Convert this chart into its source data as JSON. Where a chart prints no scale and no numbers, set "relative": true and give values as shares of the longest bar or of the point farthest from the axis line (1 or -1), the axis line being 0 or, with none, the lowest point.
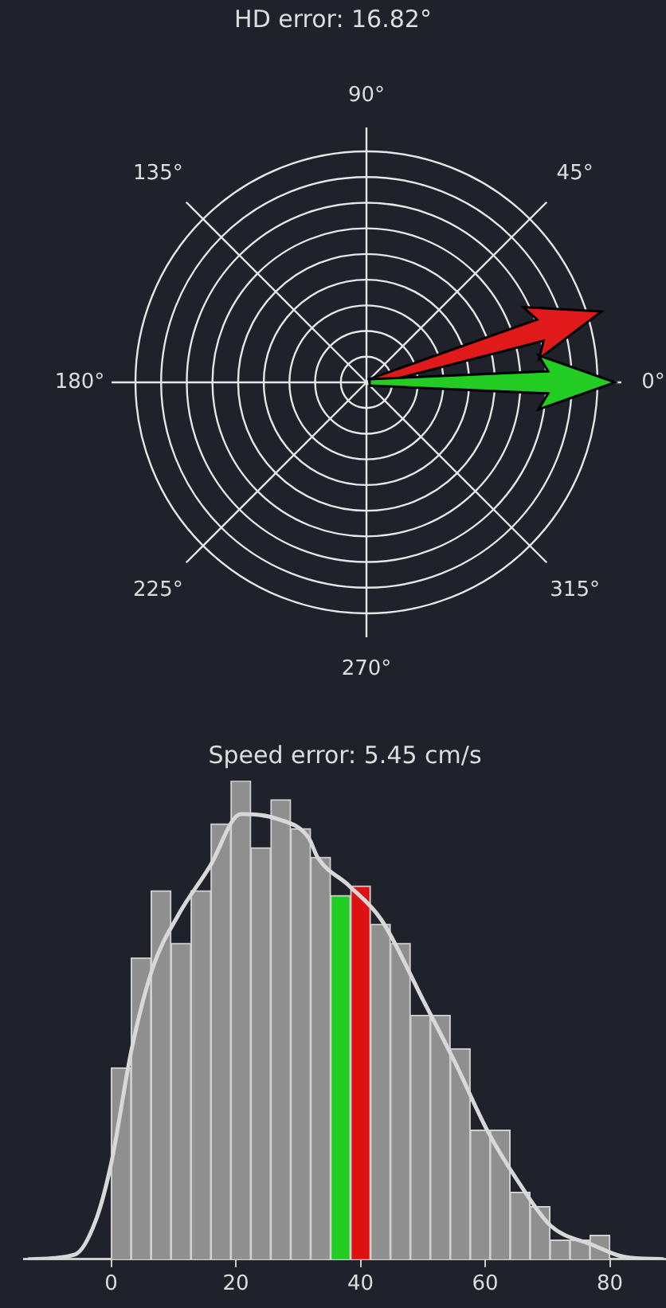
{
  "chart_data": [
    {
      "type": "other",
      "title": "HD error: 16.82°",
      "annotations": [
        "0°",
        "45°",
        "90°",
        "135°",
        "180°",
        "225°",
        "270°",
        "315°"
      ]
    },
    {
      "type": "histogram",
      "title": "Speed error: 5.45 cm/s",
      "relative": true,
      "xlim": [
        -14,
        89
      ],
      "xticks": [
        0,
        20,
        40,
        60,
        80
      ],
      "series": [
        {
          "type": "histogram",
          "bins": [
            0,
            3.2,
            6.4,
            9.6,
            12.8,
            16,
            19.2,
            22.4,
            25.6,
            28.8,
            32,
            35.2,
            38.4,
            41.6,
            44.8,
            48,
            51.2,
            54.4,
            57.6,
            60.8,
            64,
            67.2,
            70.4,
            73.6,
            76.8,
            80
          ],
          "values": [
            0.4,
            0.63,
            0.77,
            0.66,
            0.77,
            0.91,
            1,
            0.86,
            0.96,
            0.9,
            0.84,
            0.76,
            0.78,
            0.7,
            0.66,
            0.51,
            0.51,
            0.44,
            0.27,
            0.27,
            0.14,
            0.11,
            0.04,
            0.04,
            0.05
          ],
          "colors": [
            "#8f8f8f",
            "#8f8f8f",
            "#8f8f8f",
            "#8f8f8f",
            "#8f8f8f",
            "#8f8f8f",
            "#8f8f8f",
            "#8f8f8f",
            "#8f8f8f",
            "#8f8f8f",
            "#8f8f8f",
            "#22cc22",
            "#dd1111",
            "#8f8f8f",
            "#8f8f8f",
            "#8f8f8f",
            "#8f8f8f",
            "#8f8f8f",
            "#8f8f8f",
            "#8f8f8f",
            "#8f8f8f",
            "#8f8f8f",
            "#8f8f8f",
            "#8f8f8f",
            "#8f8f8f"
          ]
        },
        {
          "type": "line",
          "color": "#d8d8d8",
          "x": [
            -13.3,
            -5.8,
            -2.5,
            0,
            3.3,
            6.7,
            10.8,
            15.8,
            20.8,
            26.7,
            31.7,
            33.1,
            38.2,
            43.3,
            50.1,
            55.2,
            60.3,
            65.4,
            70.5,
            77.2,
            82.3,
            88.6
          ],
          "values": [
            0,
            0.01,
            0.08,
            0.2,
            0.44,
            0.61,
            0.72,
            0.82,
            0.93,
            0.92,
            0.88,
            0.84,
            0.78,
            0.71,
            0.54,
            0.41,
            0.27,
            0.16,
            0.07,
            0.03,
            0.005,
            0
          ]
        }
      ]
    }
  ]
}
